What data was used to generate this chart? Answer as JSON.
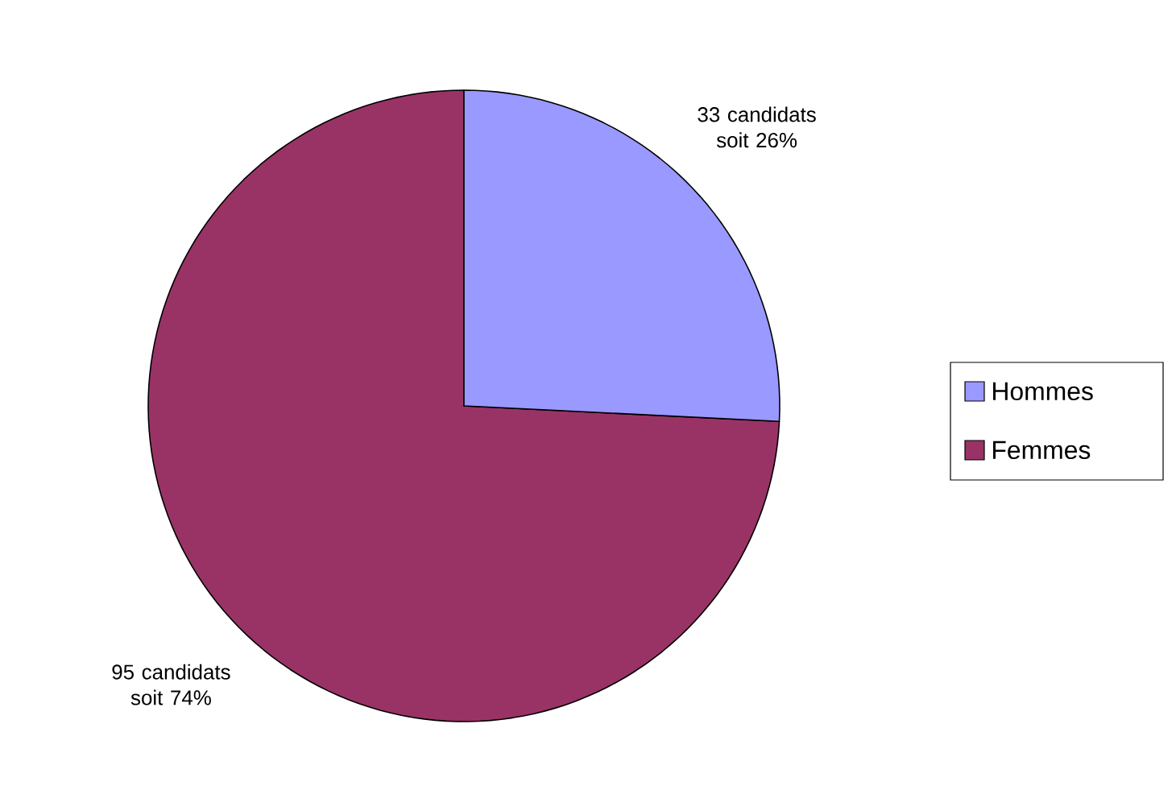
{
  "chart_data": {
    "type": "pie",
    "categories": [
      "Hommes",
      "Femmes"
    ],
    "values": [
      33,
      95
    ],
    "colors": [
      "#9999ff",
      "#993366"
    ],
    "value_labels": [
      "33 candidats soit 26%",
      "95 candidats soit 74%"
    ],
    "legend": "right"
  }
}
